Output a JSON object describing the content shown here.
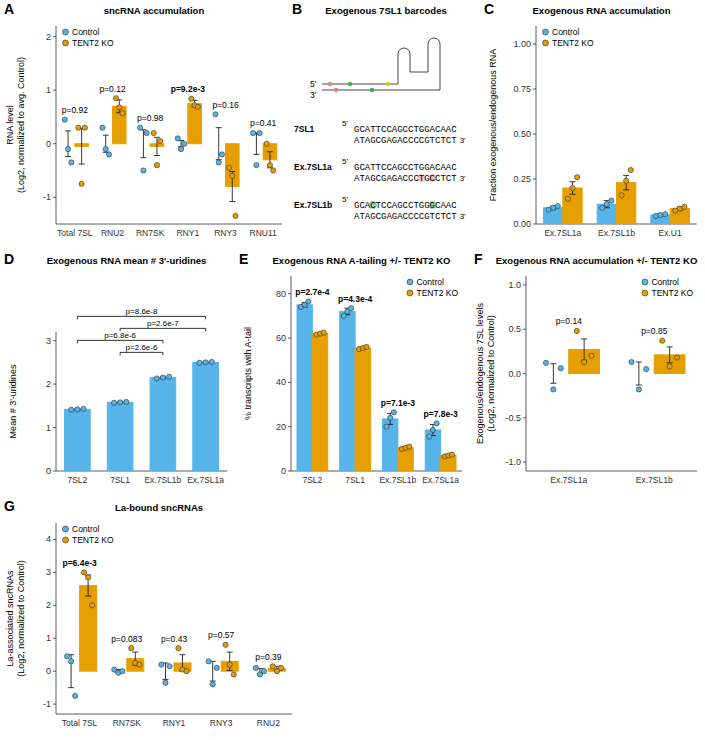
{
  "chart_data": [
    {
      "panel": "A",
      "type": "bar",
      "title": "sncRNA accumulation",
      "ylabel": "RNA level\n(Log2, normalized to avg. Control)",
      "categories": [
        "Total 7SL",
        "RNU2",
        "RN7SK",
        "RNY1",
        "RNY3",
        "RNU11"
      ],
      "series": [
        {
          "name": "Control",
          "color": "#56B4E9",
          "values": [
            0,
            0,
            0,
            0,
            0,
            0
          ],
          "errors": [
            0.24,
            0.16,
            0.26,
            0.06,
            0.3,
            0.2
          ],
          "points": [
            [
              0.45,
              -0.1,
              -0.35
            ],
            [
              0.3,
              -0.1,
              -0.2
            ],
            [
              0.3,
              -0.5,
              0.2
            ],
            [
              0.1,
              -0.1,
              0.0
            ],
            [
              0.55,
              -0.35,
              -0.2
            ],
            [
              0.2,
              -0.4,
              0.2
            ]
          ]
        },
        {
          "name": "TENT2 KO",
          "color": "#E69F00",
          "values": [
            -0.05,
            0.7,
            -0.05,
            0.75,
            -0.8,
            -0.3
          ],
          "errors": [
            0.33,
            0.12,
            0.17,
            0.06,
            0.28,
            0.15
          ],
          "points": [
            [
              0.3,
              -0.75,
              0.3
            ],
            [
              0.85,
              0.68,
              0.57
            ],
            [
              0.2,
              -0.4,
              0.05
            ],
            [
              0.84,
              0.72,
              0.69
            ],
            [
              -0.45,
              -0.6,
              -1.35
            ],
            [
              0.0,
              -0.4,
              -0.5
            ]
          ]
        }
      ],
      "ylim": [
        -1.5,
        2.2
      ],
      "yticks": [
        -1,
        0,
        1,
        2
      ],
      "legend": "top-left",
      "annotations": [
        {
          "text": "p=0.92",
          "category": 0
        },
        {
          "text": "p=0.12",
          "category": 1
        },
        {
          "text": "p=0.98",
          "category": 2
        },
        {
          "text": "p=9.2e-3",
          "category": 3
        },
        {
          "text": "p=0.16",
          "category": 4
        },
        {
          "text": "p=0.41",
          "category": 5
        }
      ]
    },
    {
      "panel": "C",
      "type": "bar",
      "title": "Exogenous RNA accumulation",
      "ylabel": "Fraction exogenous/endogenous RNA",
      "categories": [
        "Ex.7SL1a",
        "Ex.7SL1b",
        "Ex.U1"
      ],
      "series": [
        {
          "name": "Control",
          "color": "#56B4E9",
          "values": [
            0.09,
            0.11,
            0.05
          ],
          "errors": [
            0.01,
            0.02,
            0.005
          ],
          "points": [
            [
              0.08,
              0.09,
              0.1
            ],
            [
              0.09,
              0.11,
              0.13
            ],
            [
              0.045,
              0.05,
              0.055
            ]
          ]
        },
        {
          "name": "TENT2 KO",
          "color": "#E69F00",
          "values": [
            0.2,
            0.23,
            0.085
          ],
          "errors": [
            0.035,
            0.04,
            0.01
          ],
          "points": [
            [
              0.14,
              0.2,
              0.26
            ],
            [
              0.16,
              0.24,
              0.3
            ],
            [
              0.075,
              0.085,
              0.095
            ]
          ]
        }
      ],
      "ylim": [
        0,
        1.1
      ],
      "yticks": [
        {
          "value": 0,
          "label": "0.00"
        },
        {
          "value": 0.25,
          "label": "0.25"
        },
        {
          "value": 0.5,
          "label": "0.50"
        },
        {
          "value": 0.75,
          "label": "0.75"
        },
        {
          "value": 1,
          "label": "1.00"
        }
      ],
      "legend": "top-left"
    },
    {
      "panel": "D",
      "type": "bar",
      "title": "Exogenous RNA mean # 3'-uridines",
      "ylabel": "Mean # 3'-uridines",
      "categories": [
        "7SL2",
        "7SL1",
        "Ex.7SL1b",
        "Ex.7SL1a"
      ],
      "color": "#56B4E9",
      "values": [
        1.42,
        1.58,
        2.15,
        2.5
      ],
      "errors": [
        0.01,
        0.01,
        0.02,
        0.01
      ],
      "points": [
        [
          1.41,
          1.42,
          1.43
        ],
        [
          1.57,
          1.58,
          1.59
        ],
        [
          2.13,
          2.15,
          2.17
        ],
        [
          2.49,
          2.5,
          2.51
        ]
      ],
      "ylim": [
        0,
        3.2
      ],
      "yticks": [
        0,
        1,
        2,
        3
      ],
      "annotations": [
        {
          "text": "p=2.6e-6",
          "from": 1,
          "to": 2
        },
        {
          "text": "p=6.8e-6",
          "from": 0,
          "to": 2
        },
        {
          "text": "p=2.6e-7",
          "from": 1,
          "to": 3
        },
        {
          "text": "p=8.6e-8",
          "from": 0,
          "to": 3
        }
      ]
    },
    {
      "panel": "E",
      "type": "bar",
      "title": "Exogenous RNA A-tailing +/- TENT2 KO",
      "ylabel": "% transcripts with A-tail",
      "categories": [
        "7SL2",
        "7SL1",
        "Ex.7SL1b",
        "Ex.7SL1a"
      ],
      "series": [
        {
          "name": "Control",
          "color": "#56B4E9",
          "values": [
            75,
            72,
            23.5,
            18.5
          ],
          "errors": [
            1,
            1.5,
            2.5,
            2.5
          ],
          "points": [
            [
              74,
              75,
              76.5
            ],
            [
              70,
              72,
              73.5
            ],
            [
              20,
              24,
              26.5
            ],
            [
              15.5,
              18.5,
              21.5
            ]
          ]
        },
        {
          "name": "TENT2 KO",
          "color": "#E69F00",
          "values": [
            62,
            55.5,
            10.5,
            7
          ],
          "errors": [
            0.5,
            0.5,
            0.5,
            0.4
          ],
          "points": [
            [
              61.5,
              62,
              62.5
            ],
            [
              55,
              55.5,
              56
            ],
            [
              10,
              10.5,
              11
            ],
            [
              6.6,
              7,
              7.4
            ]
          ]
        }
      ],
      "ylim": [
        0,
        88
      ],
      "yticks": [
        0,
        20,
        40,
        60,
        80
      ],
      "legend": "top-right",
      "annotations": [
        {
          "text": "p=2.7e-4",
          "category": 0
        },
        {
          "text": "p=4.3e-4",
          "category": 1
        },
        {
          "text": "p=7.1e-3",
          "category": 2
        },
        {
          "text": "p=7.8e-3",
          "category": 3
        }
      ]
    },
    {
      "panel": "F",
      "type": "bar",
      "title": "Exogenous RNA accumulation +/- TENT2 KO",
      "ylabel": "Exogenous/endogenous 7SL levels\n(Log2, normalized to Control)",
      "categories": [
        "Ex.7SL1a",
        "Ex.7SL1b"
      ],
      "series": [
        {
          "name": "Control",
          "color": "#56B4E9",
          "values": [
            0,
            0
          ],
          "errors": [
            0.11,
            0.13
          ],
          "points": [
            [
              0.12,
              -0.18,
              0.06
            ],
            [
              0.13,
              -0.18,
              0.05
            ]
          ]
        },
        {
          "name": "TENT2 KO",
          "color": "#E69F00",
          "values": [
            0.27,
            0.21
          ],
          "errors": [
            0.12,
            0.09
          ],
          "points": [
            [
              0.48,
              0.13,
              0.2
            ],
            [
              0.37,
              0.08,
              0.18
            ]
          ]
        }
      ],
      "ylim": [
        -1.1,
        1.1
      ],
      "yticks": [
        {
          "value": -1,
          "label": "-1.0"
        },
        {
          "value": -0.5,
          "label": "-0.5"
        },
        {
          "value": 0,
          "label": "0.0"
        },
        {
          "value": 0.5,
          "label": "0.5"
        },
        {
          "value": 1,
          "label": "1.0"
        }
      ],
      "legend": "top-right",
      "annotations": [
        {
          "text": "p=0.14",
          "category": 0
        },
        {
          "text": "p=0.85",
          "category": 1
        }
      ]
    },
    {
      "panel": "G",
      "type": "bar",
      "title": "La-bound sncRNAs",
      "ylabel": "La-associated sncRNAs\n(Log2, normalized to Control)",
      "categories": [
        "Total 7SL",
        "RN7SK",
        "RNY1",
        "RNY3",
        "RNU2"
      ],
      "series": [
        {
          "name": "Control",
          "color": "#56B4E9",
          "values": [
            0,
            0,
            0,
            0,
            0
          ],
          "errors": [
            0.5,
            0.05,
            0.25,
            0.3,
            0.08
          ],
          "points": [
            [
              0.45,
              0.3,
              -0.75
            ],
            [
              0.05,
              -0.05,
              0.0
            ],
            [
              0.2,
              -0.35,
              0.15
            ],
            [
              0.3,
              -0.4,
              0.1
            ],
            [
              0.1,
              -0.1,
              0.0
            ]
          ]
        },
        {
          "name": "TENT2 KO",
          "color": "#E69F00",
          "values": [
            2.6,
            0.38,
            0.25,
            0.3,
            0.08
          ],
          "errors": [
            0.32,
            0.2,
            0.25,
            0.28,
            0.07
          ],
          "points": [
            [
              3.0,
              2.85,
              2.0
            ],
            [
              0.7,
              0.25,
              0.2
            ],
            [
              0.7,
              0.05,
              0.0
            ],
            [
              0.8,
              0.2,
              -0.1
            ],
            [
              0.15,
              0.0,
              0.1
            ]
          ]
        }
      ],
      "ylim": [
        -1.3,
        4.5
      ],
      "yticks": [
        -1,
        0,
        1,
        2,
        3,
        4
      ],
      "legend": "top-left",
      "annotations": [
        {
          "text": "p=6.4e-3",
          "category": 0
        },
        {
          "text": "p=0.083",
          "category": 1
        },
        {
          "text": "p=0.43",
          "category": 2
        },
        {
          "text": "p=0.57",
          "category": 3
        },
        {
          "text": "p=0.39",
          "category": 4
        }
      ]
    }
  ],
  "diagram": {
    "panel": "B",
    "title": "Exogenous 7SL1 barcodes",
    "end5": "5'",
    "end3": "3'",
    "sequences": [
      {
        "name": "7SL1",
        "lines": [
          "GCATTCCAGCCTGGACAAC",
          "ATAGCGAGACCCCGTCTCT"
        ],
        "highlights": [],
        "color": "#e8837a"
      },
      {
        "name": "Ex.7SL1a",
        "lines": [
          "GCATTCCAGCCTGGACAAC",
          "ATAGCGAGACCCTGCCTCT"
        ],
        "highlights": [
          {
            "line": 1,
            "index": 12
          },
          {
            "line": 1,
            "index": 14
          }
        ],
        "color": "#e8837a"
      },
      {
        "name": "Ex.7SL1b",
        "lines": [
          "GCACTCCAGCCTGGGCAAC",
          "ATAGCGAGACCCCGTCTCT"
        ],
        "highlights": [
          {
            "line": 0,
            "index": 3
          },
          {
            "line": 0,
            "index": 14
          }
        ],
        "color": "#3cb043"
      }
    ]
  }
}
